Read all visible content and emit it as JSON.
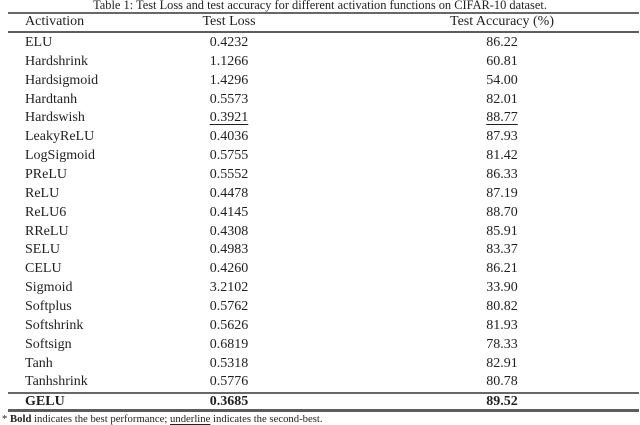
{
  "title": "Table 1: Test Loss and test accuracy for different activation functions on CIFAR-10 dataset.",
  "table": {
    "columns": [
      "Activation",
      "Test Loss",
      "Test Accuracy (%)"
    ],
    "rows": [
      {
        "activation": "ELU",
        "loss": "0.4232",
        "accuracy": "86.22"
      },
      {
        "activation": "Hardshrink",
        "loss": "1.1266",
        "accuracy": "60.81"
      },
      {
        "activation": "Hardsigmoid",
        "loss": "1.4296",
        "accuracy": "54.00"
      },
      {
        "activation": "Hardtanh",
        "loss": "0.5573",
        "accuracy": "82.01"
      },
      {
        "activation": "Hardswish",
        "loss": "0.3921",
        "accuracy": "88.77",
        "emphasis": "underline"
      },
      {
        "activation": "LeakyReLU",
        "loss": "0.4036",
        "accuracy": "87.93"
      },
      {
        "activation": "LogSigmoid",
        "loss": "0.5755",
        "accuracy": "81.42"
      },
      {
        "activation": "PReLU",
        "loss": "0.5552",
        "accuracy": "86.33"
      },
      {
        "activation": "ReLU",
        "loss": "0.4478",
        "accuracy": "87.19"
      },
      {
        "activation": "ReLU6",
        "loss": "0.4145",
        "accuracy": "88.70"
      },
      {
        "activation": "RReLU",
        "loss": "0.4308",
        "accuracy": "85.91"
      },
      {
        "activation": "SELU",
        "loss": "0.4983",
        "accuracy": "83.37"
      },
      {
        "activation": "CELU",
        "loss": "0.4260",
        "accuracy": "86.21"
      },
      {
        "activation": "Sigmoid",
        "loss": "3.2102",
        "accuracy": "33.90"
      },
      {
        "activation": "Softplus",
        "loss": "0.5762",
        "accuracy": "80.82"
      },
      {
        "activation": "Softshrink",
        "loss": "0.5626",
        "accuracy": "81.93"
      },
      {
        "activation": "Softsign",
        "loss": "0.6819",
        "accuracy": "78.33"
      },
      {
        "activation": "Tanh",
        "loss": "0.5318",
        "accuracy": "82.91"
      },
      {
        "activation": "Tanhshrink",
        "loss": "0.5776",
        "accuracy": "80.78"
      },
      {
        "activation": "GELU",
        "loss": "0.3685",
        "accuracy": "89.52",
        "emphasis": "bold"
      }
    ]
  },
  "footnote": {
    "prefix": "* ",
    "bold_word": "Bold",
    "middle": " indicates the best performance; ",
    "underline_word": "underline",
    "suffix": " indicates the second-best."
  },
  "colors": {
    "text": "#1f1f1f",
    "rule": "#686868",
    "background": "#ffffff"
  }
}
